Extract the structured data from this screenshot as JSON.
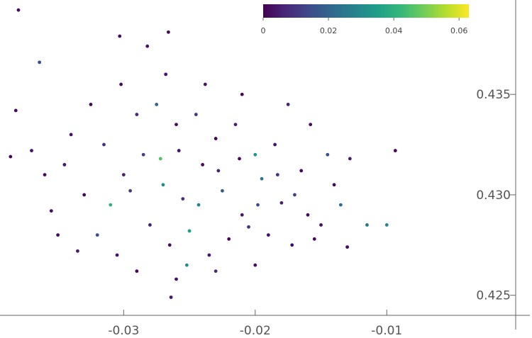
{
  "chart_data": {
    "type": "scatter",
    "colormap": "viridis",
    "xlim": [
      -0.0394,
      -0.0002
    ],
    "ylim": [
      0.424,
      0.4397
    ],
    "xticks": [
      -0.03,
      -0.02,
      -0.01
    ],
    "yticks": [
      0.425,
      {
        "value": 0.43,
        "label": "0.430"
      },
      0.435
    ],
    "clim": [
      0,
      0.063
    ],
    "cticks": [
      0,
      0.02,
      0.04,
      0.06
    ],
    "x": [
      -0.038,
      -0.0266,
      -0.0303,
      -0.0282,
      -0.00935,
      -0.013,
      -0.0264,
      -0.01,
      -0.0115,
      -0.0382,
      -0.0386,
      -0.0364,
      -0.03,
      -0.0285,
      -0.027,
      -0.0255,
      -0.024,
      -0.0225,
      -0.021,
      -0.0195,
      -0.018,
      -0.0165,
      -0.015,
      -0.0315,
      -0.033,
      -0.0345,
      -0.0355,
      -0.032,
      -0.0305,
      -0.029,
      -0.0275,
      -0.026,
      -0.0245,
      -0.023,
      -0.0215,
      -0.02,
      -0.0185,
      -0.017,
      -0.016,
      -0.014,
      -0.0135,
      -0.028,
      -0.0265,
      -0.025,
      -0.0235,
      -0.022,
      -0.0205,
      -0.019,
      -0.031,
      -0.0295,
      -0.0272,
      -0.0258,
      -0.0243,
      -0.0228,
      -0.0212,
      -0.0198,
      -0.0183,
      -0.034,
      -0.0325,
      -0.0302,
      -0.0268,
      -0.0238,
      -0.021,
      -0.0175,
      -0.0158,
      -0.035,
      -0.0335,
      -0.029,
      -0.026,
      -0.023,
      -0.02,
      -0.0252,
      -0.0172,
      -0.0155,
      -0.0145,
      -0.0128,
      -0.036,
      -0.037
    ],
    "y": [
      0.4392,
      0.4381,
      0.4379,
      0.4374,
      0.4322,
      0.4274,
      0.4249,
      0.4285,
      0.4285,
      0.4342,
      0.4319,
      0.4366,
      0.431,
      0.432,
      0.4305,
      0.4298,
      0.4315,
      0.4302,
      0.429,
      0.4308,
      0.4296,
      0.4312,
      0.4285,
      0.4325,
      0.43,
      0.4315,
      0.4292,
      0.428,
      0.427,
      0.434,
      0.4345,
      0.4335,
      0.434,
      0.4328,
      0.4335,
      0.432,
      0.4325,
      0.43,
      0.429,
      0.4305,
      0.4295,
      0.4285,
      0.4275,
      0.4282,
      0.427,
      0.4278,
      0.4284,
      0.428,
      0.4295,
      0.4302,
      0.4318,
      0.4322,
      0.4295,
      0.4312,
      0.4318,
      0.4295,
      0.431,
      0.433,
      0.4345,
      0.4355,
      0.436,
      0.4355,
      0.435,
      0.4345,
      0.4335,
      0.428,
      0.4272,
      0.4262,
      0.4258,
      0.4262,
      0.4265,
      0.4265,
      0.4275,
      0.4278,
      0.432,
      0.4318,
      0.431,
      0.4322
    ],
    "color_values": [
      0.002,
      0.001,
      0.002,
      0.003,
      0.001,
      0.002,
      0.004,
      0.03,
      0.025,
      0.002,
      0.001,
      0.015,
      0.005,
      0.012,
      0.03,
      0.008,
      0.002,
      0.018,
      0.004,
      0.025,
      0.006,
      0.001,
      0.003,
      0.009,
      0.001,
      0.004,
      0.002,
      0.015,
      0.003,
      0.007,
      0.02,
      0.002,
      0.01,
      0.001,
      0.005,
      0.033,
      0.004,
      0.012,
      0.002,
      0.001,
      0.022,
      0.006,
      0.002,
      0.035,
      0.004,
      0.001,
      0.009,
      0.003,
      0.04,
      0.011,
      0.045,
      0.003,
      0.028,
      0.006,
      0.002,
      0.014,
      0.008,
      0.003,
      0.001,
      0.002,
      0.004,
      0.003,
      0.001,
      0.006,
      0.002,
      0.002,
      0.005,
      0.001,
      0.003,
      0.008,
      0.002,
      0.03,
      0.002,
      0.001,
      0.016,
      0.005,
      0.001,
      0.003
    ]
  }
}
